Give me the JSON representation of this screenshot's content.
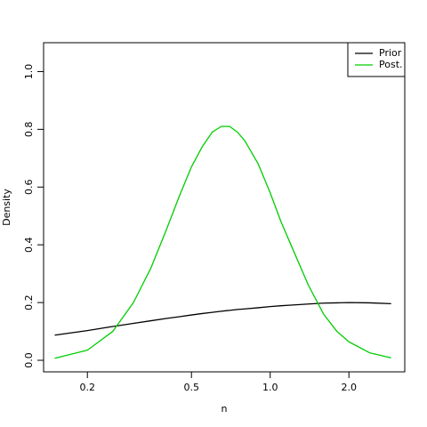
{
  "chart_data": {
    "type": "line",
    "xlabel": "n",
    "ylabel": "Density",
    "xscale": "log",
    "x": [
      0.15,
      0.2,
      0.25,
      0.3,
      0.35,
      0.4,
      0.45,
      0.5,
      0.55,
      0.6,
      0.65,
      0.7,
      0.75,
      0.8,
      0.9,
      1.0,
      1.1,
      1.2,
      1.4,
      1.6,
      1.8,
      2.0,
      2.4,
      2.9
    ],
    "series": [
      {
        "name": "Prior",
        "color": "#000000",
        "values": [
          0.087,
          0.103,
          0.117,
          0.128,
          0.137,
          0.145,
          0.151,
          0.157,
          0.162,
          0.166,
          0.17,
          0.173,
          0.176,
          0.178,
          0.182,
          0.186,
          0.189,
          0.191,
          0.195,
          0.198,
          0.199,
          0.2,
          0.199,
          0.196
        ]
      },
      {
        "name": "Post.",
        "color": "#00cd00",
        "values": [
          0.007,
          0.035,
          0.1,
          0.2,
          0.32,
          0.45,
          0.57,
          0.67,
          0.74,
          0.79,
          0.81,
          0.81,
          0.79,
          0.76,
          0.68,
          0.58,
          0.48,
          0.4,
          0.26,
          0.16,
          0.1,
          0.064,
          0.026,
          0.0085
        ]
      }
    ],
    "xlim": [
      0.136,
      3.27
    ],
    "ylim": [
      -0.04,
      1.1
    ],
    "xticks": [
      0.2,
      0.5,
      {
        "value": 1,
        "label": "1.0"
      },
      {
        "value": 2,
        "label": "2.0"
      }
    ],
    "yticks": [
      {
        "value": 0,
        "label": "0.0"
      },
      0.2,
      0.4,
      0.6,
      0.8,
      {
        "value": 1,
        "label": "1.0"
      }
    ],
    "legend": "top-right"
  }
}
